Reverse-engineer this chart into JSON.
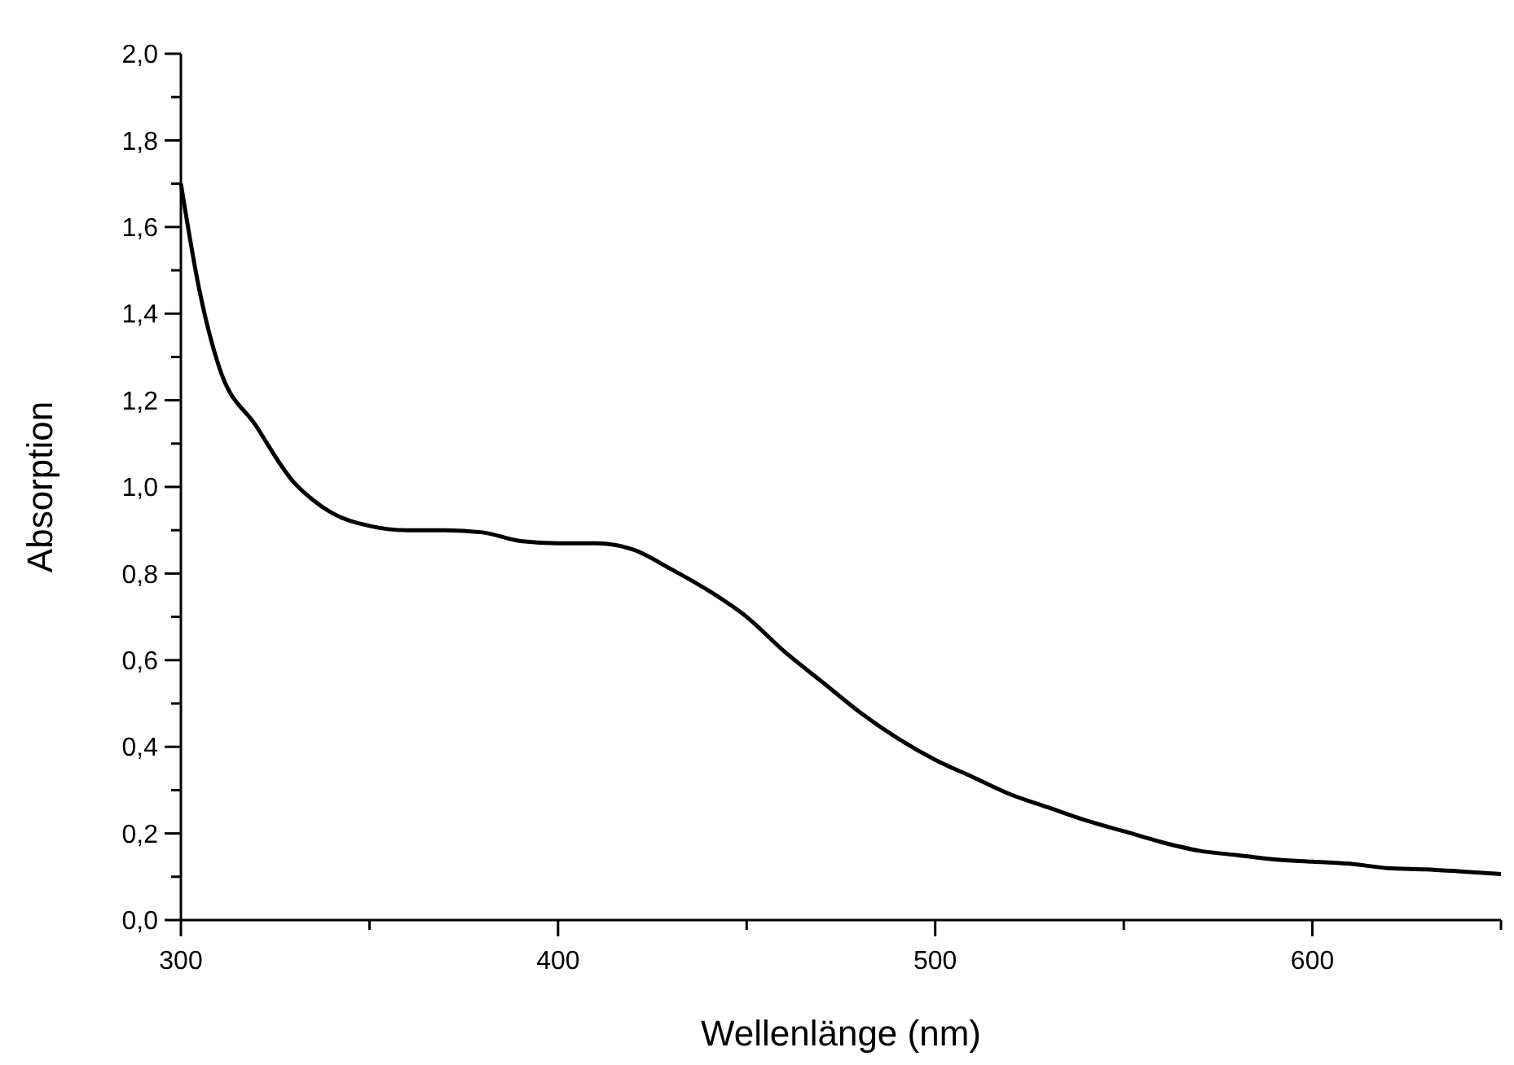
{
  "chart_data": {
    "type": "line",
    "xlabel": "Wellenlänge (nm)",
    "ylabel": "Absorption",
    "x": [
      300,
      305,
      310,
      320,
      330,
      335,
      340,
      350,
      360,
      370,
      380,
      390,
      400,
      410,
      420,
      430,
      440,
      450,
      460,
      470,
      480,
      490,
      500,
      510,
      520,
      530,
      540,
      550,
      560,
      570,
      580,
      590,
      600,
      610,
      620,
      630,
      640,
      650
    ],
    "series": [
      {
        "color": "#000000",
        "values": [
          1.7,
          1.45,
          1.28,
          1.14,
          1.01,
          0.97,
          0.94,
          0.91,
          0.9,
          0.9,
          0.895,
          0.875,
          0.87,
          0.87,
          0.855,
          0.81,
          0.76,
          0.7,
          0.62,
          0.55,
          0.48,
          0.42,
          0.37,
          0.33,
          0.29,
          0.26,
          0.23,
          0.205,
          0.18,
          0.16,
          0.15,
          0.14,
          0.135,
          0.13,
          0.12,
          0.117,
          0.112,
          0.106
        ]
      }
    ],
    "xlim": [
      300,
      650
    ],
    "ylim": [
      0,
      2
    ],
    "xticks": [
      300,
      {
        "value": 350,
        "label": null
      },
      400,
      {
        "value": 450,
        "label": null
      },
      500,
      {
        "value": 550,
        "label": null
      },
      600,
      {
        "value": 650,
        "label": null
      }
    ],
    "yticks": [
      {
        "value": 0,
        "label": "0,0"
      },
      {
        "value": 0.1,
        "label": null
      },
      {
        "value": 0.2,
        "label": "0,2"
      },
      {
        "value": 0.3,
        "label": null
      },
      {
        "value": 0.4,
        "label": "0,4"
      },
      {
        "value": 0.5,
        "label": null
      },
      {
        "value": 0.6,
        "label": "0,6"
      },
      {
        "value": 0.7,
        "label": null
      },
      {
        "value": 0.8,
        "label": "0,8"
      },
      {
        "value": 0.9,
        "label": null
      },
      {
        "value": 1.0,
        "label": "1,0"
      },
      {
        "value": 1.1,
        "label": null
      },
      {
        "value": 1.2,
        "label": "1,2"
      },
      {
        "value": 1.3,
        "label": null
      },
      {
        "value": 1.4,
        "label": "1,4"
      },
      {
        "value": 1.5,
        "label": null
      },
      {
        "value": 1.6,
        "label": "1,6"
      },
      {
        "value": 1.7,
        "label": null
      },
      {
        "value": 1.8,
        "label": "1,8"
      },
      {
        "value": 1.9,
        "label": null
      },
      {
        "value": 2.0,
        "label": "2,0"
      }
    ],
    "marker": "none",
    "line_style": "solid"
  }
}
